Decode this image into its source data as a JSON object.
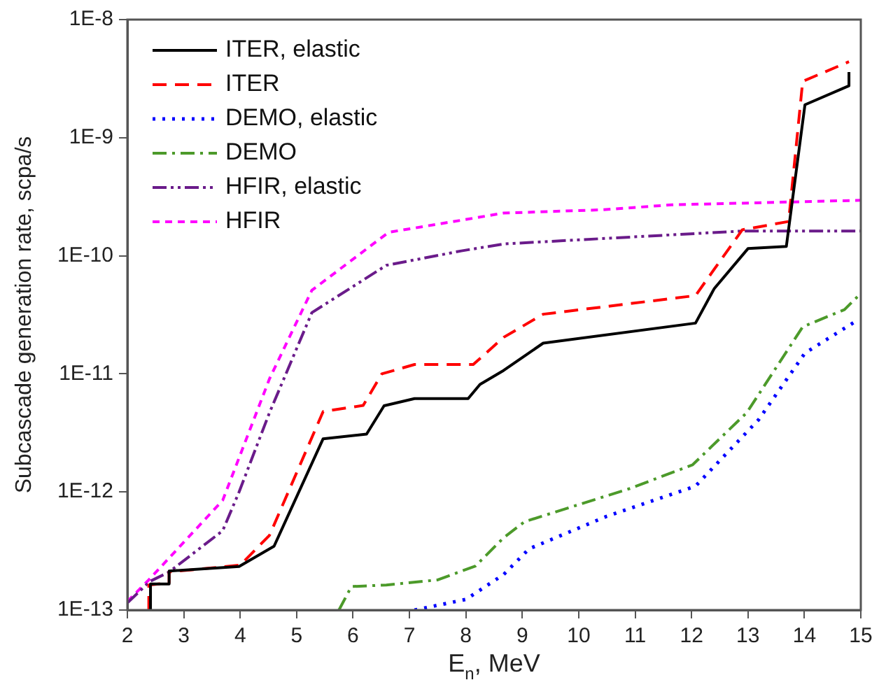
{
  "chart_data": {
    "type": "line",
    "xlabel": "E$_{n}$, MeV",
    "ylabel": "Subcascade generation rate, scpa/s",
    "log": "y",
    "xlim": [
      2,
      15
    ],
    "xticks": [
      2,
      3,
      4,
      5,
      6,
      7,
      8,
      9,
      10,
      11,
      12,
      13,
      14,
      15
    ],
    "ylim": [
      1e-13,
      1e-08
    ],
    "yticks": [
      {
        "value": 1e-13,
        "label": "1E-13"
      },
      {
        "value": 1e-12,
        "label": "1E-12"
      },
      {
        "value": 1e-11,
        "label": "1E-11"
      },
      {
        "value": 1e-10,
        "label": "1E-10"
      },
      {
        "value": 1e-09,
        "label": "1E-9"
      },
      {
        "value": 1e-08,
        "label": "1E-8"
      }
    ],
    "legend": "top left",
    "grid": false,
    "marker": "none",
    "series": [
      {
        "name": "ITER, elastic",
        "color": "#000000",
        "line_style": "solid",
        "x": [
          2.41,
          2.41,
          2.74,
          2.74,
          3.98,
          4.6,
          5.47,
          6.24,
          6.55,
          7.09,
          8.04,
          8.25,
          8.67,
          9.37,
          12.07,
          12.4,
          13.0,
          13.68,
          14.01,
          14.79,
          14.79
        ],
        "values": [
          1e-13,
          1.66e-13,
          1.66e-13,
          2.14e-13,
          2.34e-13,
          3.47e-13,
          2.82e-12,
          3.09e-12,
          5.37e-12,
          6.17e-12,
          6.17e-12,
          8.13e-12,
          1.07e-11,
          1.82e-11,
          2.69e-11,
          5.25e-11,
          1.15e-10,
          1.2e-10,
          1.9e-09,
          2.75e-09,
          3.6e-09
        ]
      },
      {
        "name": "ITER",
        "color": "#ff0000",
        "line_style": "dashed",
        "x": [
          2.38,
          2.38,
          2.74,
          2.74,
          4.0,
          4.52,
          5.47,
          6.18,
          6.51,
          7.09,
          8.13,
          8.67,
          9.37,
          12.07,
          12.9,
          13.72,
          13.97,
          14.79
        ],
        "values": [
          1e-13,
          1.63e-13,
          1.7e-13,
          2.1e-13,
          2.4e-13,
          4.3e-13,
          4.8e-12,
          5.4e-12,
          1e-11,
          1.2e-11,
          1.2e-11,
          2.04e-11,
          3.2e-11,
          4.6e-11,
          1.66e-10,
          1.95e-10,
          3e-09,
          4.4e-09
        ]
      },
      {
        "name": "DEMO, elastic",
        "color": "#0000ff",
        "line_style": "dotted",
        "x": [
          7.09,
          8.0,
          8.67,
          9.12,
          10.49,
          12.07,
          13.19,
          14.01,
          14.89
        ],
        "values": [
          1e-13,
          1.23e-13,
          2e-13,
          3.3e-13,
          6.2e-13,
          1.12e-12,
          4.1e-12,
          1.5e-11,
          2.75e-11
        ]
      },
      {
        "name": "DEMO",
        "color": "#4c9a2a",
        "line_style": "dashdot",
        "x": [
          5.75,
          5.97,
          6.59,
          7.5,
          8.17,
          8.67,
          9.04,
          10.91,
          12.02,
          12.98,
          13.97,
          14.71,
          15.0
        ],
        "values": [
          1e-13,
          1.58e-13,
          1.63e-13,
          1.8e-13,
          2.36e-13,
          4.1e-13,
          5.6e-13,
          1.07e-12,
          1.7e-12,
          4.7e-12,
          2.5e-11,
          3.5e-11,
          4.8e-11
        ]
      },
      {
        "name": "HFIR, elastic",
        "color": "#6a1b8a",
        "line_style": "dashdotdot",
        "x": [
          2.0,
          2.4,
          2.74,
          3.69,
          3.98,
          4.52,
          5.27,
          6.59,
          7.92,
          8.67,
          12.9,
          15.0
        ],
        "values": [
          1.15e-13,
          1.75e-13,
          2.1e-13,
          4.7e-13,
          1e-12,
          4.7e-12,
          3.3e-11,
          8.3e-11,
          1.1e-10,
          1.26e-10,
          1.62e-10,
          1.62e-10
        ]
      },
      {
        "name": "HFIR",
        "color": "#ff00ff",
        "line_style": "shortdash",
        "x": [
          2.0,
          2.37,
          3.69,
          4.52,
          5.27,
          6.63,
          7.92,
          8.67,
          10.4,
          11.65,
          15.0
        ],
        "values": [
          1.18e-13,
          1.78e-13,
          8.5e-13,
          9.1e-12,
          5.1e-11,
          1.58e-10,
          2e-10,
          2.3e-10,
          2.45e-10,
          2.7e-10,
          2.95e-10
        ]
      }
    ]
  }
}
